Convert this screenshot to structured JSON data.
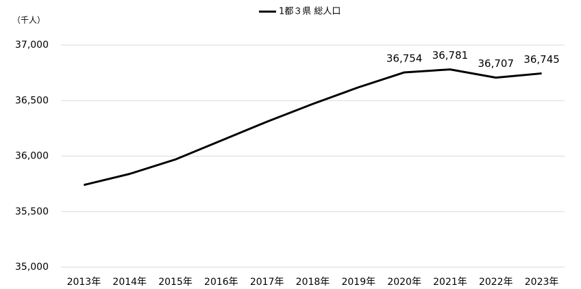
{
  "chart_data": {
    "type": "line",
    "y_axis_label": "（千人）",
    "categories": [
      "2013年",
      "2014年",
      "2015年",
      "2016年",
      "2017年",
      "2018年",
      "2019年",
      "2020年",
      "2021年",
      "2022年",
      "2023年"
    ],
    "series": [
      {
        "name": "1都３県 総人口",
        "color": "#000000",
        "values": [
          35740,
          35840,
          35970,
          36140,
          36310,
          36470,
          36620,
          36754,
          36781,
          36707,
          36745
        ],
        "value_labels": [
          null,
          null,
          null,
          null,
          null,
          null,
          null,
          "36,754",
          "36,781",
          "36,707",
          "36,745"
        ]
      }
    ],
    "ylim": [
      35000,
      37000
    ],
    "yticks": [
      {
        "value": 35000,
        "label": "35,000"
      },
      {
        "value": 35500,
        "label": "35,500"
      },
      {
        "value": 36000,
        "label": "36,000"
      },
      {
        "value": 36500,
        "label": "36,500"
      },
      {
        "value": 37000,
        "label": "37,000"
      }
    ],
    "grid": true,
    "legend": "top"
  }
}
